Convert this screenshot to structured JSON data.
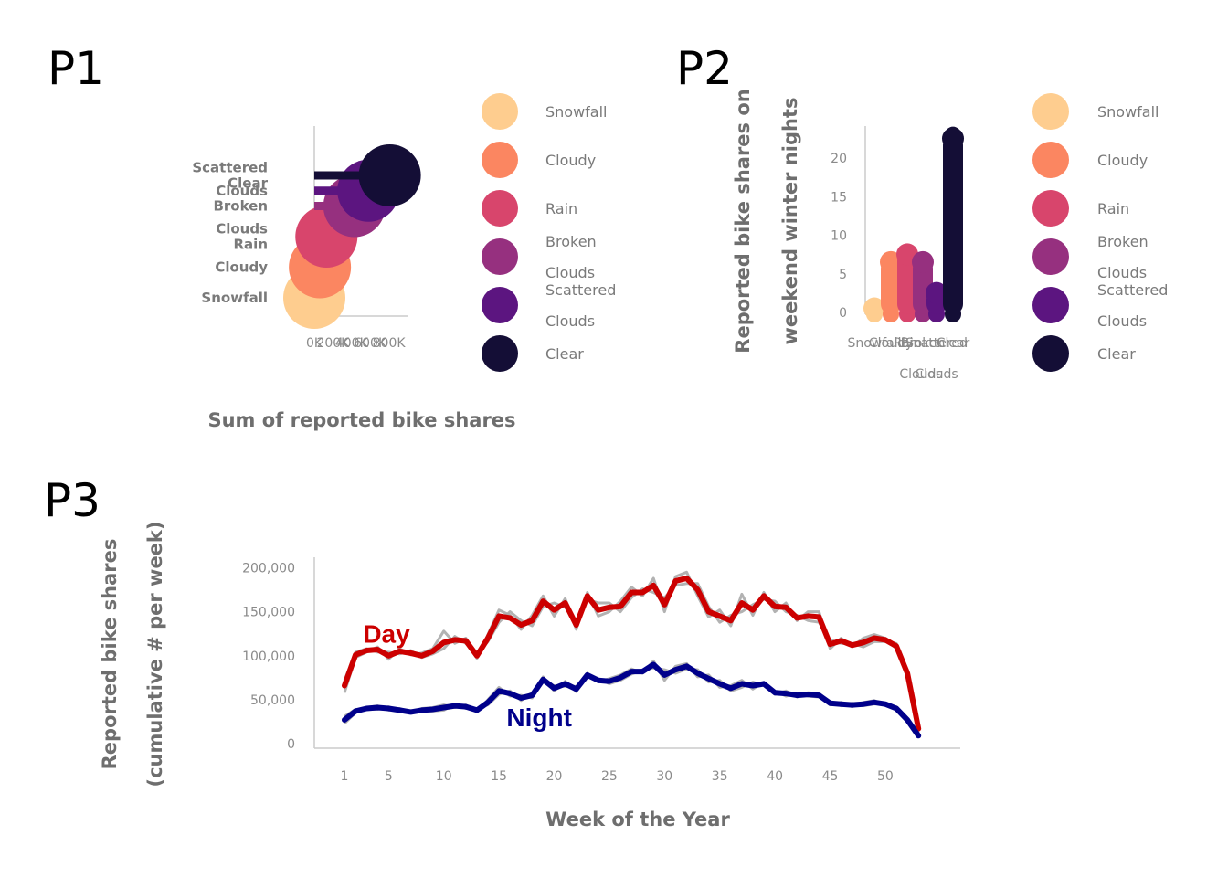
{
  "colors": {
    "Snowfall": "#fecd8f",
    "Cloudy": "#fb8661",
    "Rain": "#d8456c",
    "Broken Clouds": "#96307f",
    "Scattered Clouds": "#5c1580",
    "Clear": "#140e36",
    "day": "#cc0000",
    "night": "#00008b",
    "raw": "#aaaaaa",
    "axis": "#cccccc"
  },
  "legend": [
    {
      "key": "Snowfall",
      "lines": [
        "Snowfall"
      ]
    },
    {
      "key": "Cloudy",
      "lines": [
        "Cloudy"
      ]
    },
    {
      "key": "Rain",
      "lines": [
        "Rain"
      ]
    },
    {
      "key": "Broken Clouds",
      "lines": [
        "Broken",
        "Clouds"
      ]
    },
    {
      "key": "Scattered Clouds",
      "lines": [
        "Scattered",
        "Clouds"
      ]
    },
    {
      "key": "Clear",
      "lines": [
        "Clear"
      ]
    }
  ],
  "chart_data": [
    {
      "id": "P1",
      "panel_label": "P1",
      "type": "lollipop",
      "orientation": "horizontal",
      "xlabel": "Sum of reported bike shares",
      "ylabel": "",
      "xlim": [
        0,
        1000000
      ],
      "xticks": [
        0,
        200000,
        400000,
        600000,
        800000
      ],
      "xtick_labels": [
        "0K",
        "200K",
        "400K",
        "600K",
        "800K"
      ],
      "points": [
        {
          "category": "Snowfall",
          "label_lines": [
            "Snowfall"
          ],
          "value": 0
        },
        {
          "category": "Cloudy",
          "label_lines": [
            "Cloudy"
          ],
          "value": 60000
        },
        {
          "category": "Rain",
          "label_lines": [
            "Clouds",
            "Rain"
          ],
          "value": 130000
        },
        {
          "category": "Broken Clouds",
          "label_lines": [
            "Broken"
          ],
          "value": 430000
        },
        {
          "category": "Scattered Clouds",
          "label_lines": [
            "Clouds"
          ],
          "value": 580000
        },
        {
          "category": "Clear",
          "label_lines": [
            "Scattered",
            "Clear"
          ],
          "value": 810000
        }
      ],
      "category_positions": [
        {
          "category": "Snowfall",
          "pos": 0
        },
        {
          "category": "Cloudy",
          "pos": 1
        },
        {
          "category": "Rain",
          "pos": 2
        },
        {
          "category": "Broken Clouds",
          "pos": 3
        },
        {
          "category": "Scattered Clouds",
          "pos": 3.5
        },
        {
          "category": "Clear",
          "pos": 4
        }
      ]
    },
    {
      "id": "P2",
      "panel_label": "P2",
      "type": "lollipop",
      "orientation": "vertical",
      "ylabel_lines": [
        "Reported bike shares on",
        "weekend winter nights"
      ],
      "xlabel": "",
      "ylim": [
        0,
        24
      ],
      "yticks": [
        0,
        5,
        10,
        15,
        20
      ],
      "bars": [
        {
          "category": "Snowfall",
          "value": 1
        },
        {
          "category": "Cloudy",
          "value": 7
        },
        {
          "category": "Rain",
          "value": 8
        },
        {
          "category": "Broken Clouds",
          "value": 7
        },
        {
          "category": "Scattered Clouds",
          "value": 3
        },
        {
          "category": "Clear",
          "value": 23
        }
      ],
      "x_tick_labels": [
        {
          "text": "Snowfall",
          "row": 0
        },
        {
          "text": "Cloudy",
          "row": 0
        },
        {
          "text": "Rain",
          "row": 0
        },
        {
          "text": "Broken",
          "row": 0
        },
        {
          "text": "Scattered",
          "row": 0
        },
        {
          "text": "Clear",
          "row": 0
        },
        {
          "text": "Clouds",
          "row": 1
        },
        {
          "text": "Clouds",
          "row": 1
        }
      ]
    },
    {
      "id": "P3",
      "panel_label": "P3",
      "type": "line",
      "xlabel": "Week of the Year",
      "ylabel_lines": [
        "Reported bike shares",
        "(cumulative # per week)"
      ],
      "xlim": [
        -1,
        56
      ],
      "ylim": [
        0,
        215000
      ],
      "xticks": [
        1,
        5,
        10,
        15,
        20,
        25,
        30,
        35,
        40,
        45,
        50
      ],
      "yticks": [
        0,
        50000,
        100000,
        150000,
        200000
      ],
      "ytick_labels": [
        "0",
        "50,000",
        "100,000",
        "150,000",
        "200,000"
      ],
      "annotations": [
        {
          "text": "Day",
          "series": "Day",
          "x": 5,
          "y": 125000
        },
        {
          "text": "Night",
          "series": "Night",
          "x": 18,
          "y": 30000
        }
      ],
      "series": [
        {
          "name": "Day",
          "x": [
            1,
            2,
            3,
            4,
            5,
            6,
            7,
            8,
            9,
            10,
            11,
            12,
            13,
            14,
            15,
            16,
            17,
            18,
            19,
            20,
            21,
            22,
            23,
            24,
            25,
            26,
            27,
            28,
            29,
            30,
            31,
            32,
            33,
            34,
            35,
            36,
            37,
            38,
            39,
            40,
            41,
            42,
            43,
            44,
            45,
            46,
            47,
            48,
            49,
            50,
            51,
            52,
            53
          ],
          "y": [
            66000,
            101000,
            106000,
            107000,
            100000,
            105000,
            103000,
            100000,
            105000,
            115000,
            118000,
            117000,
            100000,
            120000,
            145000,
            143000,
            135000,
            140000,
            162000,
            152000,
            160000,
            135000,
            168000,
            152000,
            155000,
            156000,
            172000,
            172000,
            180000,
            158000,
            185000,
            188000,
            175000,
            150000,
            145000,
            140000,
            160000,
            152000,
            168000,
            156000,
            155000,
            143000,
            145000,
            144000,
            113000,
            117000,
            112000,
            115000,
            120000,
            118000,
            111000,
            80000,
            17000
          ]
        },
        {
          "name": "Night",
          "x": [
            1,
            2,
            3,
            4,
            5,
            6,
            7,
            8,
            9,
            10,
            11,
            12,
            13,
            14,
            15,
            16,
            17,
            18,
            19,
            20,
            21,
            22,
            23,
            24,
            25,
            26,
            27,
            28,
            29,
            30,
            31,
            32,
            33,
            34,
            35,
            36,
            37,
            38,
            39,
            40,
            41,
            42,
            43,
            44,
            45,
            46,
            47,
            48,
            49,
            50,
            51,
            52,
            53
          ],
          "y": [
            27000,
            37000,
            40000,
            41000,
            40000,
            38000,
            36000,
            38000,
            39000,
            41000,
            43000,
            42000,
            38000,
            47000,
            60000,
            57000,
            52000,
            55000,
            73000,
            63000,
            68000,
            62000,
            78000,
            72000,
            71000,
            75000,
            82000,
            82000,
            90000,
            78000,
            84000,
            88000,
            80000,
            74000,
            68000,
            63000,
            68000,
            66000,
            68000,
            58000,
            57000,
            55000,
            56000,
            55000,
            46000,
            45000,
            44000,
            45000,
            47000,
            45000,
            40000,
            27000,
            9000
          ]
        },
        {
          "name": "Day raw A",
          "raw": true,
          "x": [
            1,
            2,
            3,
            4,
            5,
            6,
            7,
            8,
            9,
            10,
            11,
            12,
            13,
            14,
            15,
            16,
            17,
            18,
            19,
            20,
            21,
            22,
            23,
            24,
            25,
            26,
            27,
            28,
            29,
            30,
            31,
            32,
            33,
            34,
            35,
            36,
            37,
            38,
            39,
            40,
            41,
            42,
            43,
            44,
            45,
            46,
            47,
            48,
            49,
            50,
            51,
            52,
            53
          ],
          "y": [
            58000,
            98000,
            104000,
            110000,
            96000,
            108000,
            101000,
            103000,
            108000,
            128000,
            114000,
            120000,
            97000,
            124000,
            152000,
            146000,
            130000,
            146000,
            168000,
            145000,
            165000,
            130000,
            172000,
            145000,
            150000,
            162000,
            178000,
            168000,
            188000,
            150000,
            190000,
            195000,
            168000,
            144000,
            152000,
            134000,
            170000,
            146000,
            172000,
            150000,
            160000,
            140000,
            150000,
            150000,
            108000,
            120000,
            110000,
            120000,
            124000,
            120000,
            108000,
            84000,
            22000
          ]
        },
        {
          "name": "Day raw B",
          "raw": true,
          "x": [
            1,
            2,
            3,
            4,
            5,
            6,
            7,
            8,
            9,
            10,
            11,
            12,
            13,
            14,
            15,
            16,
            17,
            18,
            19,
            20,
            21,
            22,
            23,
            24,
            25,
            26,
            27,
            28,
            29,
            30,
            31,
            32,
            33,
            34,
            35,
            36,
            37,
            38,
            39,
            40,
            41,
            42,
            43,
            44,
            45,
            46,
            47,
            48,
            49,
            50,
            51,
            52,
            53
          ],
          "y": [
            72000,
            104000,
            108000,
            104000,
            104000,
            102000,
            106000,
            98000,
            102000,
            108000,
            122000,
            114000,
            103000,
            116000,
            138000,
            150000,
            140000,
            134000,
            156000,
            160000,
            155000,
            140000,
            164000,
            160000,
            160000,
            150000,
            166000,
            176000,
            172000,
            166000,
            180000,
            182000,
            182000,
            156000,
            138000,
            146000,
            150000,
            158000,
            164000,
            162000,
            150000,
            146000,
            140000,
            138000,
            118000,
            114000,
            114000,
            110000,
            116000,
            116000,
            114000,
            76000,
            12000
          ]
        },
        {
          "name": "Night raw A",
          "raw": true,
          "x": [
            1,
            2,
            3,
            4,
            5,
            6,
            7,
            8,
            9,
            10,
            11,
            12,
            13,
            14,
            15,
            16,
            17,
            18,
            19,
            20,
            21,
            22,
            23,
            24,
            25,
            26,
            27,
            28,
            29,
            30,
            31,
            32,
            33,
            34,
            35,
            36,
            37,
            38,
            39,
            40,
            41,
            42,
            43,
            44,
            45,
            46,
            47,
            48,
            49,
            50,
            51,
            52,
            53
          ],
          "y": [
            23000,
            35000,
            41000,
            43000,
            38000,
            40000,
            35000,
            40000,
            41000,
            44000,
            41000,
            44000,
            36000,
            50000,
            64000,
            54000,
            55000,
            52000,
            76000,
            60000,
            71000,
            59000,
            80000,
            70000,
            74000,
            78000,
            85000,
            80000,
            94000,
            72000,
            88000,
            91000,
            76000,
            78000,
            64000,
            66000,
            72000,
            62000,
            70000,
            56000,
            60000,
            53000,
            58000,
            57000,
            44000,
            47000,
            42000,
            47000,
            49000,
            44000,
            42000,
            29000,
            11000
          ]
        },
        {
          "name": "Night raw B",
          "raw": true,
          "x": [
            1,
            2,
            3,
            4,
            5,
            6,
            7,
            8,
            9,
            10,
            11,
            12,
            13,
            14,
            15,
            16,
            17,
            18,
            19,
            20,
            21,
            22,
            23,
            24,
            25,
            26,
            27,
            28,
            29,
            30,
            31,
            32,
            33,
            34,
            35,
            36,
            37,
            38,
            39,
            40,
            41,
            42,
            43,
            44,
            45,
            46,
            47,
            48,
            49,
            50,
            51,
            52,
            53
          ],
          "y": [
            31000,
            39000,
            39000,
            39000,
            42000,
            36000,
            37000,
            36000,
            37000,
            38000,
            45000,
            40000,
            40000,
            44000,
            56000,
            60000,
            49000,
            58000,
            70000,
            66000,
            65000,
            65000,
            76000,
            74000,
            68000,
            72000,
            79000,
            84000,
            86000,
            84000,
            80000,
            85000,
            84000,
            70000,
            72000,
            60000,
            64000,
            70000,
            66000,
            60000,
            54000,
            57000,
            54000,
            53000,
            48000,
            43000,
            46000,
            43000,
            45000,
            46000,
            38000,
            25000,
            7000
          ]
        }
      ]
    }
  ]
}
